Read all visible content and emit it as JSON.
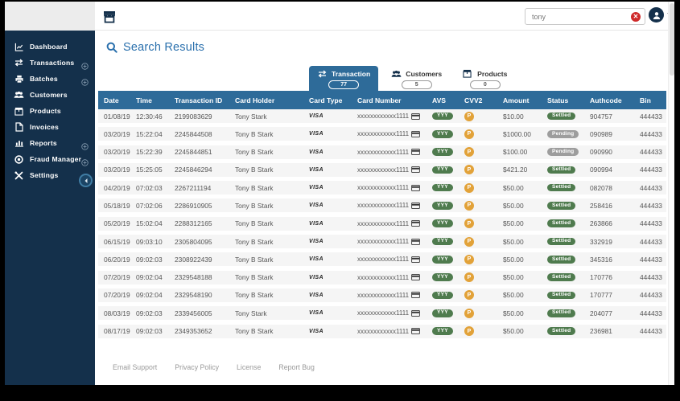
{
  "topbar": {
    "search_value": "tony",
    "logo_icon": "store-icon",
    "clear_icon": "clear-x-icon",
    "avatar_icon": "user-avatar-icon"
  },
  "sidebar": {
    "items": [
      {
        "label": "Dashboard",
        "icon": "dashboard-icon",
        "expandable": false
      },
      {
        "label": "Transactions",
        "icon": "transfer-arrows-icon",
        "expandable": true
      },
      {
        "label": "Batches",
        "icon": "printer-icon",
        "expandable": true
      },
      {
        "label": "Customers",
        "icon": "users-icon",
        "expandable": false
      },
      {
        "label": "Products",
        "icon": "package-icon",
        "expandable": false
      },
      {
        "label": "Invoices",
        "icon": "document-icon",
        "expandable": false
      },
      {
        "label": "Reports",
        "icon": "bar-chart-icon",
        "expandable": true
      },
      {
        "label": "Fraud Manager",
        "icon": "target-icon",
        "expandable": true
      },
      {
        "label": "Settings",
        "icon": "tools-icon",
        "expandable": true
      }
    ]
  },
  "main": {
    "title": "Search Results",
    "tabs": [
      {
        "label": "Transaction",
        "count": "77",
        "icon": "transfer-arrows-icon",
        "active": true
      },
      {
        "label": "Customers",
        "count": "5",
        "icon": "users-icon",
        "active": false
      },
      {
        "label": "Products",
        "count": "0",
        "icon": "package-icon",
        "active": false
      }
    ],
    "table": {
      "columns": [
        "Date",
        "Time",
        "Transaction ID",
        "Card Holder",
        "Card Type",
        "Card Number",
        "AVS",
        "CVV2",
        "Amount",
        "Status",
        "Authcode",
        "Bin"
      ],
      "rows": [
        {
          "date": "01/08/19",
          "time": "12:30:46",
          "txn_id": "2199083629",
          "card_holder": "Tony Stark",
          "card_type": "VISA",
          "card_number": "xxxxxxxxxxxx1111",
          "avs": "YYY",
          "cvv2": "P",
          "amount": "$10.00",
          "status": "Settled",
          "authcode": "904757",
          "bin": "444433"
        },
        {
          "date": "03/20/19",
          "time": "15:22:04",
          "txn_id": "2245844508",
          "card_holder": "Tony B Stark",
          "card_type": "VISA",
          "card_number": "xxxxxxxxxxxx1111",
          "avs": "YYY",
          "cvv2": "P",
          "amount": "$1000.00",
          "status": "Pending",
          "authcode": "090989",
          "bin": "444433"
        },
        {
          "date": "03/20/19",
          "time": "15:22:39",
          "txn_id": "2245844851",
          "card_holder": "Tony B Stark",
          "card_type": "VISA",
          "card_number": "xxxxxxxxxxxx1111",
          "avs": "YYY",
          "cvv2": "P",
          "amount": "$100.00",
          "status": "Pending",
          "authcode": "090990",
          "bin": "444433"
        },
        {
          "date": "03/20/19",
          "time": "15:25:05",
          "txn_id": "2245846294",
          "card_holder": "Tony B Stark",
          "card_type": "VISA",
          "card_number": "xxxxxxxxxxxx1111",
          "avs": "YYY",
          "cvv2": "P",
          "amount": "$421.20",
          "status": "Settled",
          "authcode": "090994",
          "bin": "444433"
        },
        {
          "date": "04/20/19",
          "time": "07:02:03",
          "txn_id": "2267211194",
          "card_holder": "Tony B Stark",
          "card_type": "VISA",
          "card_number": "xxxxxxxxxxxx1111",
          "avs": "YYY",
          "cvv2": "P",
          "amount": "$50.00",
          "status": "Settled",
          "authcode": "082078",
          "bin": "444433"
        },
        {
          "date": "05/18/19",
          "time": "07:02:06",
          "txn_id": "2286910905",
          "card_holder": "Tony B Stark",
          "card_type": "VISA",
          "card_number": "xxxxxxxxxxxx1111",
          "avs": "YYY",
          "cvv2": "P",
          "amount": "$50.00",
          "status": "Settled",
          "authcode": "258416",
          "bin": "444433"
        },
        {
          "date": "05/20/19",
          "time": "15:02:04",
          "txn_id": "2288312165",
          "card_holder": "Tony B Stark",
          "card_type": "VISA",
          "card_number": "xxxxxxxxxxxx1111",
          "avs": "YYY",
          "cvv2": "P",
          "amount": "$50.00",
          "status": "Settled",
          "authcode": "263866",
          "bin": "444433"
        },
        {
          "date": "06/15/19",
          "time": "09:03:10",
          "txn_id": "2305804095",
          "card_holder": "Tony B Stark",
          "card_type": "VISA",
          "card_number": "xxxxxxxxxxxx1111",
          "avs": "YYY",
          "cvv2": "P",
          "amount": "$50.00",
          "status": "Settled",
          "authcode": "332919",
          "bin": "444433"
        },
        {
          "date": "06/20/19",
          "time": "09:02:03",
          "txn_id": "2308922439",
          "card_holder": "Tony B Stark",
          "card_type": "VISA",
          "card_number": "xxxxxxxxxxxx1111",
          "avs": "YYY",
          "cvv2": "P",
          "amount": "$50.00",
          "status": "Settled",
          "authcode": "345316",
          "bin": "444433"
        },
        {
          "date": "07/20/19",
          "time": "09:02:04",
          "txn_id": "2329548188",
          "card_holder": "Tony B Stark",
          "card_type": "VISA",
          "card_number": "xxxxxxxxxxxx1111",
          "avs": "YYY",
          "cvv2": "P",
          "amount": "$50.00",
          "status": "Settled",
          "authcode": "170776",
          "bin": "444433"
        },
        {
          "date": "07/20/19",
          "time": "09:02:04",
          "txn_id": "2329548190",
          "card_holder": "Tony B Stark",
          "card_type": "VISA",
          "card_number": "xxxxxxxxxxxx1111",
          "avs": "YYY",
          "cvv2": "P",
          "amount": "$50.00",
          "status": "Settled",
          "authcode": "170777",
          "bin": "444433"
        },
        {
          "date": "08/03/19",
          "time": "09:02:03",
          "txn_id": "2339456005",
          "card_holder": "Tony Stark",
          "card_type": "VISA",
          "card_number": "xxxxxxxxxxxx1111",
          "avs": "YYY",
          "cvv2": "P",
          "amount": "$50.00",
          "status": "Settled",
          "authcode": "204077",
          "bin": "444433"
        },
        {
          "date": "08/17/19",
          "time": "09:02:03",
          "txn_id": "2349353652",
          "card_holder": "Tony B Stark",
          "card_type": "VISA",
          "card_number": "xxxxxxxxxxxx1111",
          "avs": "YYY",
          "cvv2": "P",
          "amount": "$50.00",
          "status": "Settled",
          "authcode": "236981",
          "bin": "444433"
        }
      ]
    },
    "footer_links": [
      "Email Support",
      "Privacy Policy",
      "License",
      "Report Bug"
    ]
  },
  "colors": {
    "sidebar_bg": "#14304b",
    "header_blue": "#2e6b99",
    "title_blue": "#2a70ad",
    "green": "#4f7b4e",
    "orange": "#e2a239",
    "pending_gray": "#9d9d9d",
    "amount_green": "#9cab9a"
  }
}
